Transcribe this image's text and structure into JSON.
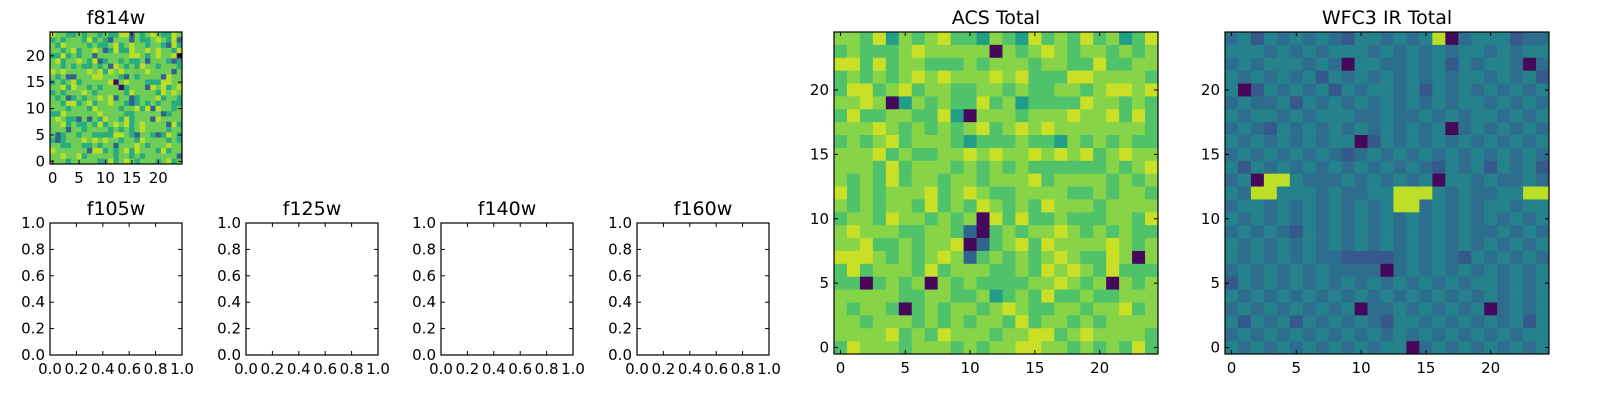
{
  "figure": {
    "colormap": "viridis"
  },
  "chart_data": [
    {
      "type": "heatmap",
      "title": "f814w",
      "grid": "off",
      "xlim": [
        -0.5,
        24.5
      ],
      "ylim": [
        -0.5,
        24.5
      ],
      "xticks": [
        0,
        5,
        10,
        15,
        20
      ],
      "yticks": [
        0,
        5,
        10,
        15,
        20
      ],
      "x_tick_labels": [
        "0",
        "5",
        "10",
        "15",
        "20"
      ],
      "y_tick_labels": [
        "0",
        "5",
        "10",
        "15",
        "20"
      ],
      "rows": 25,
      "cols": 25,
      "value_range": [
        0,
        1
      ],
      "level_keys": [
        "0.02",
        "0.32",
        "0.62",
        "0.78",
        "0.9"
      ],
      "level_rows_top_to_bottom": [
        "4332232332322441323432243",
        "2323332423213331322343241",
        "3243333232234234332332142",
        "3323423343124224334343324",
        "2242323313333334432343340",
        "3423343241233232231333212",
        "3323232232314323243323332",
        "4343333434243433334333313",
        "3231133344333213233331433",
        "2323423333340343332224433",
        "3342433232333023331434234",
        "2323334323333324333324343",
        "3231232334341331233342332",
        "3324423423343321232323322",
        "3332333243333233424143323",
        "2243333334333322333331233",
        "3432213132433242333143333",
        "3342322324234342343333142",
        "3331332333323232343333233",
        "3123323322224432133212432",
        "2123334343433233243333232",
        "3322332232331333432333433",
        "4333333144232342433324233",
        "3343342333332332323333331",
        "3332333332242343233323423"
      ]
    },
    {
      "type": "line",
      "title": "f105w",
      "series": [],
      "xlim": [
        0.0,
        1.0
      ],
      "ylim": [
        0.0,
        1.0
      ],
      "x_tick_labels": [
        "0.0",
        "0.2",
        "0.4",
        "0.6",
        "0.8",
        "1.0"
      ],
      "y_tick_labels": [
        "0.0",
        "0.2",
        "0.4",
        "0.6",
        "0.8",
        "1.0"
      ]
    },
    {
      "type": "line",
      "title": "f125w",
      "series": [],
      "xlim": [
        0.0,
        1.0
      ],
      "ylim": [
        0.0,
        1.0
      ],
      "x_tick_labels": [
        "0.0",
        "0.2",
        "0.4",
        "0.6",
        "0.8",
        "1.0"
      ],
      "y_tick_labels": [
        "0.0",
        "0.2",
        "0.4",
        "0.6",
        "0.8",
        "1.0"
      ]
    },
    {
      "type": "line",
      "title": "f140w",
      "series": [],
      "xlim": [
        0.0,
        1.0
      ],
      "ylim": [
        0.0,
        1.0
      ],
      "x_tick_labels": [
        "0.0",
        "0.2",
        "0.4",
        "0.6",
        "0.8",
        "1.0"
      ],
      "y_tick_labels": [
        "0.0",
        "0.2",
        "0.4",
        "0.6",
        "0.8",
        "1.0"
      ]
    },
    {
      "type": "line",
      "title": "f160w",
      "series": [],
      "xlim": [
        0.0,
        1.0
      ],
      "ylim": [
        0.0,
        1.0
      ],
      "x_tick_labels": [
        "0.0",
        "0.2",
        "0.4",
        "0.6",
        "0.8",
        "1.0"
      ],
      "y_tick_labels": [
        "0.0",
        "0.2",
        "0.4",
        "0.6",
        "0.8",
        "1.0"
      ]
    },
    {
      "type": "heatmap",
      "title": "ACS Total",
      "grid": "off",
      "xlim": [
        -0.5,
        24.5
      ],
      "ylim": [
        -0.5,
        24.5
      ],
      "xticks": [
        0,
        5,
        10,
        15,
        20
      ],
      "yticks": [
        0,
        5,
        10,
        15,
        20
      ],
      "x_tick_labels": [
        "0",
        "5",
        "10",
        "15",
        "20"
      ],
      "y_tick_labels": [
        "0",
        "5",
        "10",
        "15",
        "20"
      ],
      "rows": 25,
      "cols": 25,
      "value_range": [
        0,
        1
      ],
      "level_keys": [
        "0.02",
        "0.32",
        "0.56",
        "0.72",
        "0.82",
        "0.92"
      ],
      "level_rows_top_to_bottom": [
        "4435243453324325343534235",
        "3433345444440434543443434",
        "5535344333434443443353344",
        "3434345454445453335544443",
        "3553453443344343344345545",
        "4454024343353423333544343",
        "3533443352044434445445353",
        "4445434343453454544444443",
        "3434534443233343324343433",
        "4445343344545445454534544",
        "4443534443434343333334345",
        "4343534434434445344443434",
        "5343444534543344443343443",
        "4343443534354343544434444",
        "3443544343405353343334435",
        "4544433443103434454343433",
        "4453343445013453544445434",
        "5554343454134343454335404",
        "3534443534443343545435333",
        "3303434043433334454340434",
        "4444433443342343533433444",
        "4344303434434543344344534",
        "4434443434344353443434444",
        "4444534354443445534544443",
        "3544434443434455443434353"
      ]
    },
    {
      "type": "heatmap",
      "title": "WFC3 IR Total",
      "grid": "off",
      "xlim": [
        -0.5,
        24.5
      ],
      "ylim": [
        -0.5,
        24.5
      ],
      "xticks": [
        0,
        5,
        10,
        15,
        20
      ],
      "yticks": [
        0,
        5,
        10,
        15,
        20
      ],
      "x_tick_labels": [
        "0",
        "5",
        "10",
        "15",
        "20"
      ],
      "y_tick_labels": [
        "0",
        "5",
        "10",
        "15",
        "20"
      ],
      "rows": 25,
      "cols": 25,
      "value_range": [
        0,
        1
      ],
      "level_keys": [
        "0.02",
        "0.28",
        "0.36",
        "0.44",
        "0.9"
      ],
      "level_rows_top_to_bottom": [
        "2313232321332323402333122",
        "3332323233323232323323233",
        "2323332320332232313233202",
        "3232323132323232323323231",
        "3013232313233231323232323",
        "2322313232323232323323232",
        "3233232333223223232332323",
        "2321323232323232302323232",
        "3232323233013232323232323",
        "2323232321232323232323232",
        "3132323232323232132313231",
        "2304432223232323033232232",
        "3244333232233444323223344",
        "2332323232323442323233233",
        "3232323232323232323232323",
        "2323213232323232323223232",
        "3232323232323232323232323",
        "3232323221111232321323232",
        "2323232322220232323232323",
        "1323232323232323232332323",
        "3232323232323232323232323",
        "2323232323022323232302323",
        "3132313232321332323232313",
        "2323232323232323232323233",
        "3232323232323302323232323"
      ]
    }
  ]
}
